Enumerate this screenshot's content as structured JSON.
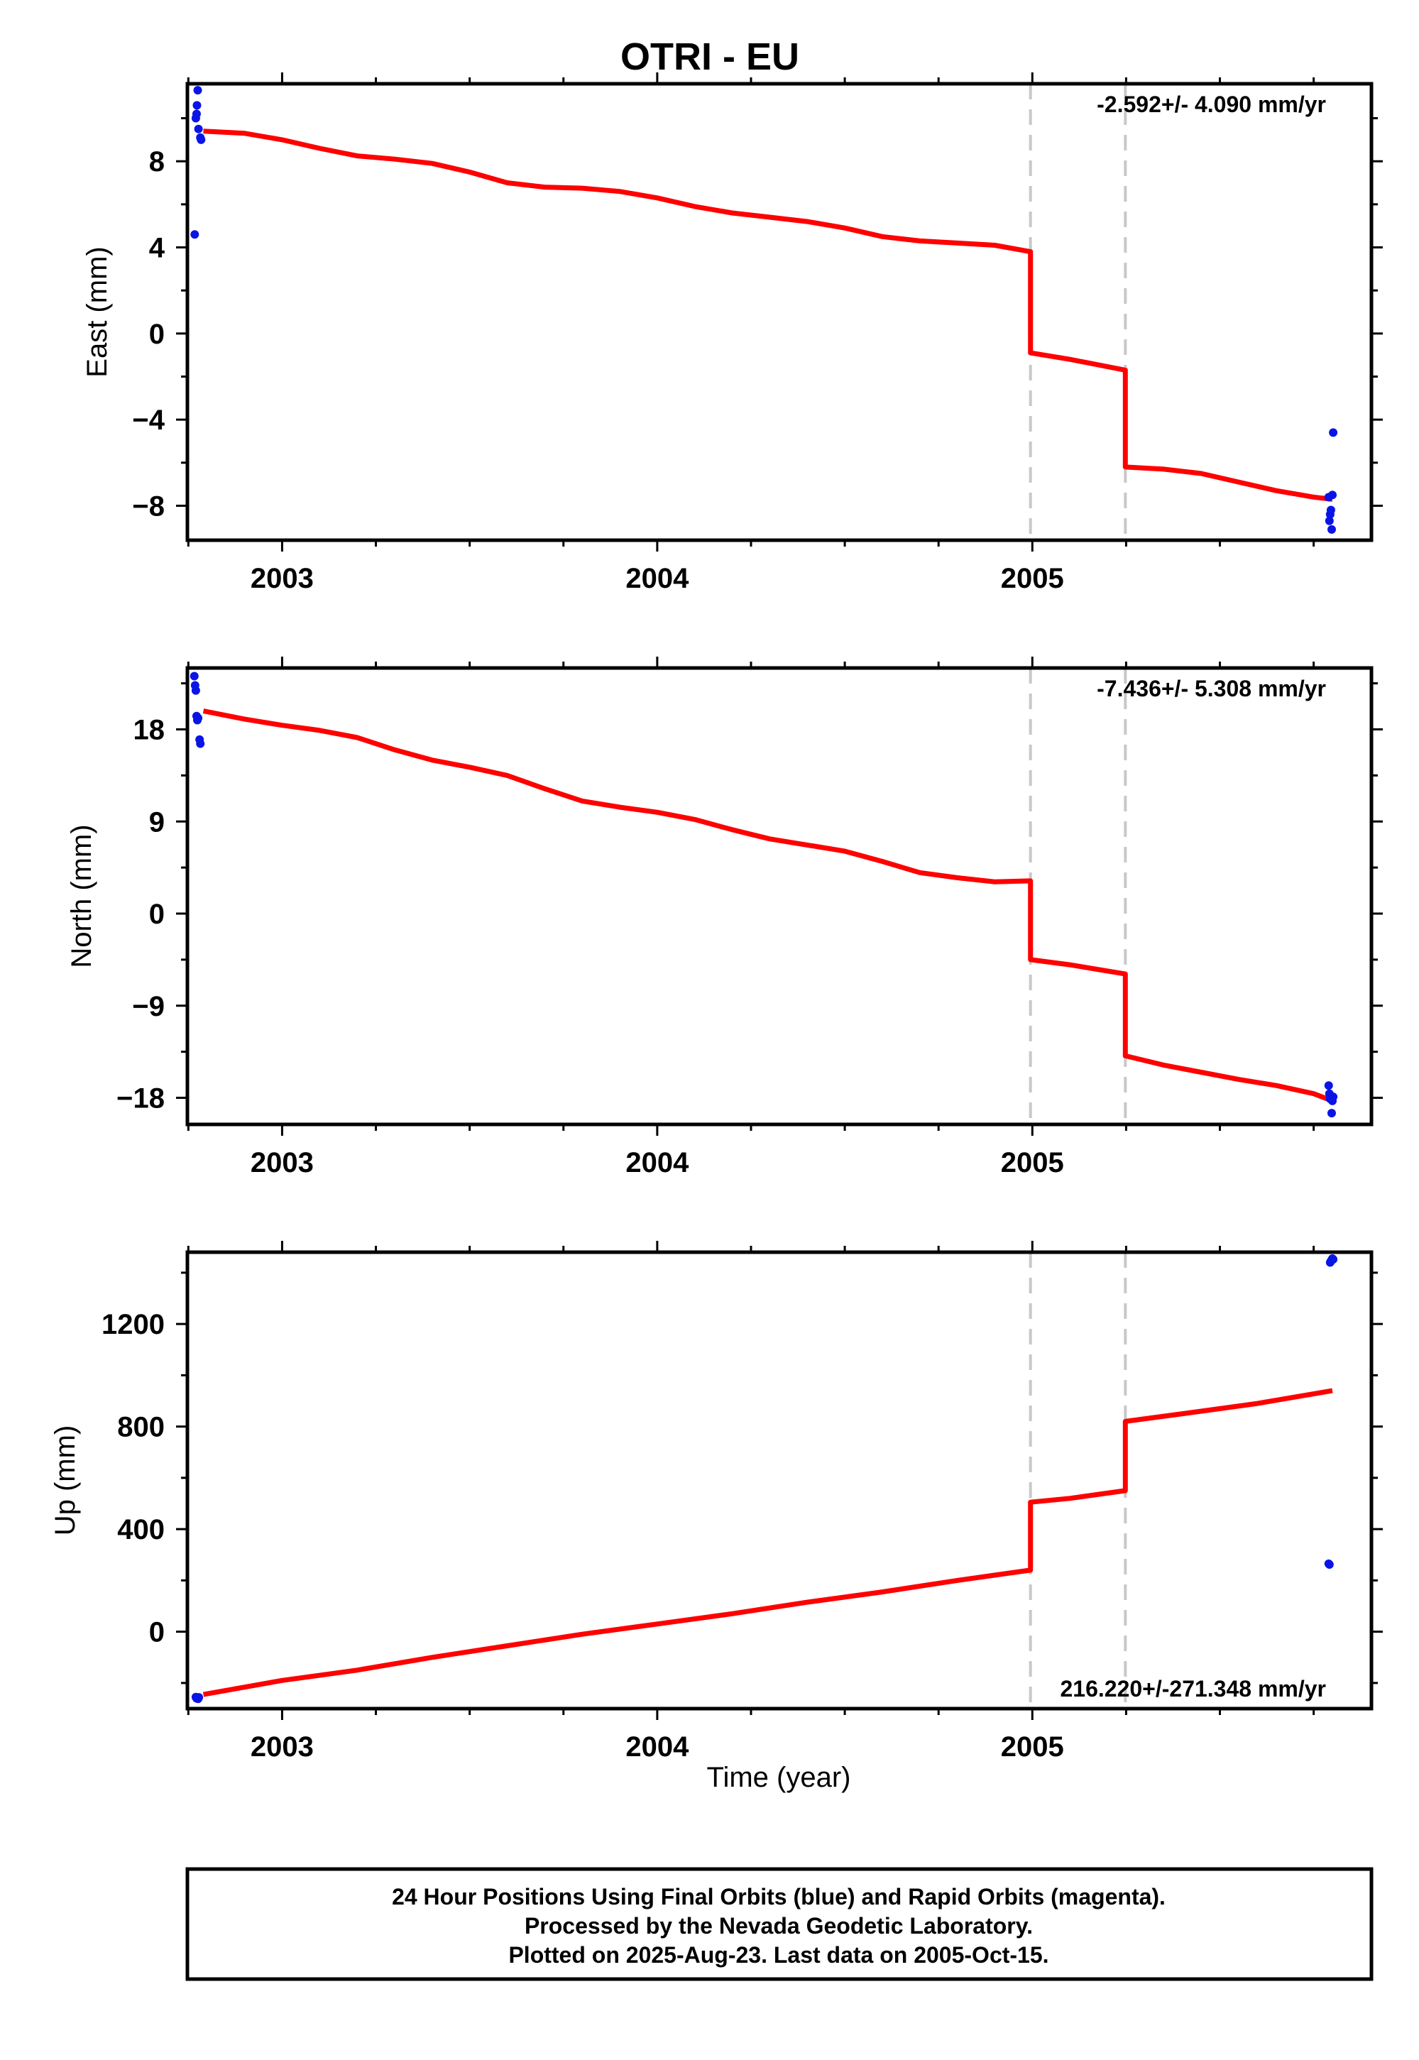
{
  "title": "OTRI - EU",
  "xlabel": "Time (year)",
  "colors": {
    "data": "#0a14e6",
    "model": "#ff0000",
    "break": "#c8c8c8"
  },
  "footer": {
    "lines": [
      "24 Hour Positions Using Final Orbits (blue) and Rapid Orbits (magenta).",
      "Processed by the Nevada Geodetic Laboratory.",
      "Plotted on 2025-Aug-23. Last data on 2005-Oct-15."
    ]
  },
  "chart_data": [
    {
      "type": "scatter",
      "ylabel": "East (mm)",
      "rate_text": "-2.592+/- 4.090 mm/yr",
      "xlim": [
        2002.7475,
        2005.904
      ],
      "ylim": [
        -9.6,
        11.6
      ],
      "xticks": [
        2003,
        2004,
        2005
      ],
      "yticks": [
        -8,
        -4,
        0,
        4,
        8
      ],
      "ytick_labels": [
        "−8",
        "−4",
        "0",
        "4",
        "8"
      ],
      "breaks": [
        2004.995,
        2005.248
      ],
      "data_points": {
        "x": [
          2002.767,
          2002.77,
          2002.772,
          2002.773,
          2002.775,
          2002.777,
          2002.782,
          2002.784,
          2005.79,
          2005.792,
          2005.794,
          2005.796,
          2005.798,
          2005.8,
          2005.802
        ],
        "y": [
          4.6,
          10.0,
          10.2,
          10.6,
          11.3,
          9.5,
          9.1,
          9.0,
          -7.6,
          -8.7,
          -8.4,
          -8.2,
          -9.1,
          -7.5,
          -4.6
        ]
      },
      "model_line": {
        "x": [
          2002.79,
          2002.9,
          2003.0,
          2003.1,
          2003.2,
          2003.3,
          2003.4,
          2003.5,
          2003.6,
          2003.7,
          2003.8,
          2003.9,
          2004.0,
          2004.1,
          2004.2,
          2004.3,
          2004.4,
          2004.5,
          2004.6,
          2004.7,
          2004.8,
          2004.9,
          2004.995,
          2004.995,
          2005.1,
          2005.248,
          2005.248,
          2005.35,
          2005.45,
          2005.55,
          2005.65,
          2005.75,
          2005.8
        ],
        "y": [
          9.4,
          9.3,
          9.0,
          8.6,
          8.25,
          8.1,
          7.9,
          7.5,
          7.0,
          6.8,
          6.75,
          6.6,
          6.3,
          5.9,
          5.6,
          5.4,
          5.2,
          4.9,
          4.5,
          4.3,
          4.2,
          4.1,
          3.8,
          -0.9,
          -1.2,
          -1.7,
          -6.2,
          -6.3,
          -6.5,
          -6.9,
          -7.3,
          -7.6,
          -7.7
        ]
      }
    },
    {
      "type": "scatter",
      "ylabel": "North (mm)",
      "rate_text": "-7.436+/- 5.308 mm/yr",
      "xlim": [
        2002.7475,
        2005.904
      ],
      "ylim": [
        -20.6,
        24.0
      ],
      "xticks": [
        2003,
        2004,
        2005
      ],
      "yticks": [
        -18,
        -9,
        0,
        9,
        18
      ],
      "ytick_labels": [
        "−18",
        "−9",
        "0",
        "9",
        "18"
      ],
      "breaks": [
        2004.995,
        2005.248
      ],
      "data_points": {
        "x": [
          2002.766,
          2002.768,
          2002.77,
          2002.772,
          2002.774,
          2002.776,
          2002.78,
          2002.782,
          2005.79,
          2005.792,
          2005.794,
          2005.796,
          2005.798,
          2005.8,
          2005.802
        ],
        "y": [
          23.2,
          22.3,
          21.8,
          19.3,
          18.9,
          19.1,
          17.0,
          16.6,
          -16.8,
          -17.6,
          -18.1,
          -17.9,
          -19.5,
          -18.3,
          -17.9
        ]
      },
      "model_line": {
        "x": [
          2002.79,
          2002.9,
          2003.0,
          2003.1,
          2003.2,
          2003.3,
          2003.4,
          2003.5,
          2003.6,
          2003.7,
          2003.8,
          2003.9,
          2004.0,
          2004.1,
          2004.2,
          2004.3,
          2004.4,
          2004.5,
          2004.6,
          2004.7,
          2004.8,
          2004.9,
          2004.995,
          2004.995,
          2005.1,
          2005.248,
          2005.248,
          2005.35,
          2005.45,
          2005.55,
          2005.65,
          2005.75,
          2005.8
        ],
        "y": [
          19.8,
          19.0,
          18.4,
          17.9,
          17.2,
          16.0,
          15.0,
          14.3,
          13.5,
          12.2,
          11.0,
          10.4,
          9.9,
          9.2,
          8.2,
          7.3,
          6.7,
          6.1,
          5.1,
          4.0,
          3.5,
          3.1,
          3.2,
          -4.5,
          -5.0,
          -5.9,
          -13.9,
          -14.8,
          -15.5,
          -16.2,
          -16.8,
          -17.6,
          -18.3
        ]
      }
    },
    {
      "type": "scatter",
      "ylabel": "Up (mm)",
      "rate_text": "216.220+/-271.348 mm/yr",
      "xlim": [
        2002.7475,
        2005.904
      ],
      "ylim": [
        -300,
        1480
      ],
      "xticks": [
        2003,
        2004,
        2005
      ],
      "yticks": [
        0,
        400,
        800,
        1200
      ],
      "ytick_labels": [
        "0",
        "400",
        "800",
        "1200"
      ],
      "breaks": [
        2004.995,
        2005.248
      ],
      "data_points": {
        "x": [
          2002.77,
          2002.772,
          2002.774,
          2002.776,
          2002.778,
          2005.79,
          2005.792,
          2005.794,
          2005.796,
          2005.798,
          2005.8,
          2005.802
        ],
        "y": [
          -255,
          -260,
          -258,
          -262,
          -256,
          265,
          262,
          1440,
          1445,
          1450,
          1455,
          1452
        ]
      },
      "model_line": {
        "x": [
          2002.79,
          2003.0,
          2003.2,
          2003.4,
          2003.6,
          2003.8,
          2004.0,
          2004.2,
          2004.4,
          2004.6,
          2004.8,
          2004.995,
          2004.995,
          2005.1,
          2005.248,
          2005.248,
          2005.4,
          2005.6,
          2005.8
        ],
        "y": [
          -245,
          -190,
          -150,
          -100,
          -55,
          -10,
          30,
          70,
          115,
          155,
          200,
          240,
          505,
          520,
          550,
          820,
          850,
          890,
          940
        ]
      }
    }
  ]
}
